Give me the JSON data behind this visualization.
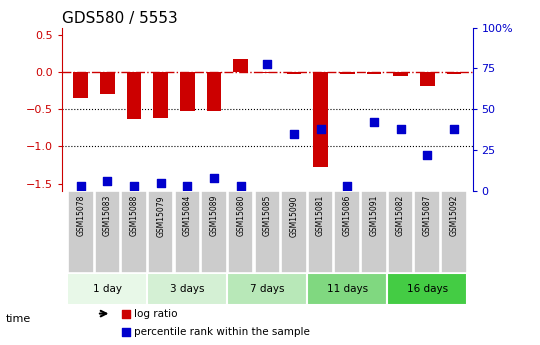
{
  "title": "GDS580 / 5553",
  "samples": [
    "GSM15078",
    "GSM15083",
    "GSM15088",
    "GSM15079",
    "GSM15084",
    "GSM15089",
    "GSM15080",
    "GSM15085",
    "GSM15090",
    "GSM15081",
    "GSM15086",
    "GSM15091",
    "GSM15082",
    "GSM15087",
    "GSM15092"
  ],
  "log_ratio": [
    -0.35,
    -0.3,
    -0.63,
    -0.62,
    -0.52,
    -0.52,
    0.18,
    -0.01,
    -0.02,
    -1.28,
    -0.02,
    -0.02,
    -0.05,
    -0.18,
    -0.02
  ],
  "percentile_rank": [
    3,
    6,
    3,
    5,
    3,
    8,
    3,
    78,
    35,
    38,
    3,
    42,
    38,
    22,
    38
  ],
  "groups": [
    {
      "label": "1 day",
      "start": 0,
      "end": 3,
      "color": "#e8f8e8"
    },
    {
      "label": "3 days",
      "start": 3,
      "end": 6,
      "color": "#d4f0d4"
    },
    {
      "label": "7 days",
      "start": 6,
      "end": 9,
      "color": "#b8e8b8"
    },
    {
      "label": "11 days",
      "start": 9,
      "end": 12,
      "color": "#80d880"
    },
    {
      "label": "16 days",
      "start": 12,
      "end": 15,
      "color": "#44cc44"
    }
  ],
  "ylim_left": [
    -1.6,
    0.6
  ],
  "ylim_right": [
    0,
    100
  ],
  "yticks_left": [
    -1.5,
    -1.0,
    -0.5,
    0.0,
    0.5
  ],
  "yticks_right": [
    0,
    25,
    50,
    75,
    100
  ],
  "bar_color": "#cc0000",
  "dot_color": "#0000cc",
  "hline_color": "#cc0000",
  "bg_color": "#ffffff",
  "sample_box_color": "#cccccc",
  "grid_dotted_levels": [
    -0.5,
    -1.0
  ],
  "title_fontsize": 11,
  "tick_fontsize": 8,
  "bar_width": 0.55,
  "dot_size": 28
}
